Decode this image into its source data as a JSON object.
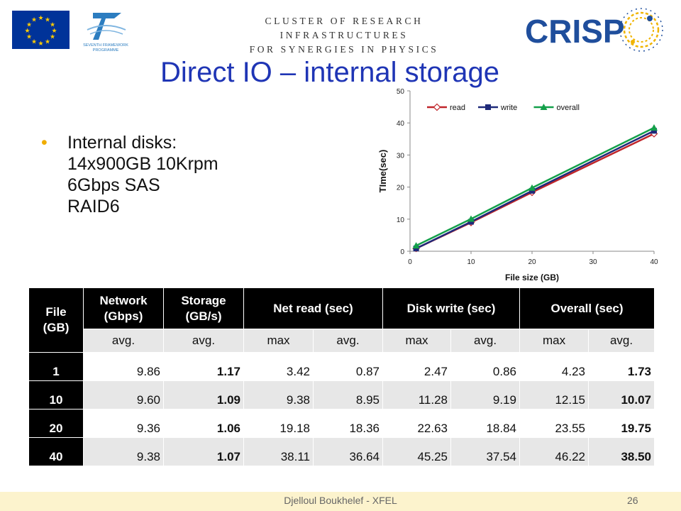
{
  "header": {
    "cluster_line1": "CLUSTER OF RESEARCH INFRASTRUCTURES",
    "cluster_line2": "FOR SYNERGIES IN PHYSICS",
    "fp7_line1": "SEVENTH FRAMEWORK",
    "fp7_line2": "PROGRAMME",
    "crisp_logo_text": "CRISP"
  },
  "title": "Direct IO – internal storage",
  "bullet": {
    "lines": [
      "Internal disks:",
      "14x900GB 10Krpm",
      "6Gbps SAS",
      "RAID6"
    ]
  },
  "chart_data": {
    "type": "line",
    "title": "",
    "xlabel": "File size (GB)",
    "ylabel": "TIme(sec)",
    "xlim": [
      0,
      40
    ],
    "ylim": [
      0,
      50
    ],
    "x_ticks": [
      "0",
      "10",
      "20",
      "30",
      "40"
    ],
    "y_ticks": [
      "0",
      "10",
      "20",
      "30",
      "40",
      "50"
    ],
    "legend_position": "top",
    "x": [
      1,
      10,
      20,
      40
    ],
    "series": [
      {
        "name": "read",
        "values": [
          0.87,
          8.95,
          18.36,
          36.64
        ],
        "color": "#c0252a",
        "marker": "diamond-open"
      },
      {
        "name": "write",
        "values": [
          0.86,
          9.19,
          18.84,
          37.54
        ],
        "color": "#1f2a7a",
        "marker": "square"
      },
      {
        "name": "overall",
        "values": [
          1.73,
          10.07,
          19.75,
          38.5
        ],
        "color": "#13a04a",
        "marker": "triangle"
      }
    ]
  },
  "table": {
    "header_file": "File (GB)",
    "groups": [
      {
        "label": "Network (Gbps)"
      },
      {
        "label": "Storage (GB/s)"
      },
      {
        "label": "Net read (sec)"
      },
      {
        "label": "Disk write (sec)"
      },
      {
        "label": "Overall (sec)"
      }
    ],
    "subheaders": [
      "avg.",
      "avg.",
      "max",
      "avg.",
      "max",
      "avg.",
      "max",
      "avg."
    ],
    "rows": [
      {
        "file": "1",
        "cells": [
          "9.86",
          "1.17",
          "3.42",
          "0.87",
          "2.47",
          "0.86",
          "4.23",
          "1.73"
        ]
      },
      {
        "file": "10",
        "cells": [
          "9.60",
          "1.09",
          "9.38",
          "8.95",
          "11.28",
          "9.19",
          "12.15",
          "10.07"
        ]
      },
      {
        "file": "20",
        "cells": [
          "9.36",
          "1.06",
          "19.18",
          "18.36",
          "22.63",
          "18.84",
          "23.55",
          "19.75"
        ]
      },
      {
        "file": "40",
        "cells": [
          "9.38",
          "1.07",
          "38.11",
          "36.64",
          "45.25",
          "37.54",
          "46.22",
          "38.50"
        ]
      }
    ]
  },
  "footer": {
    "text": "Djelloul Boukhelef - XFEL",
    "page": "26"
  }
}
